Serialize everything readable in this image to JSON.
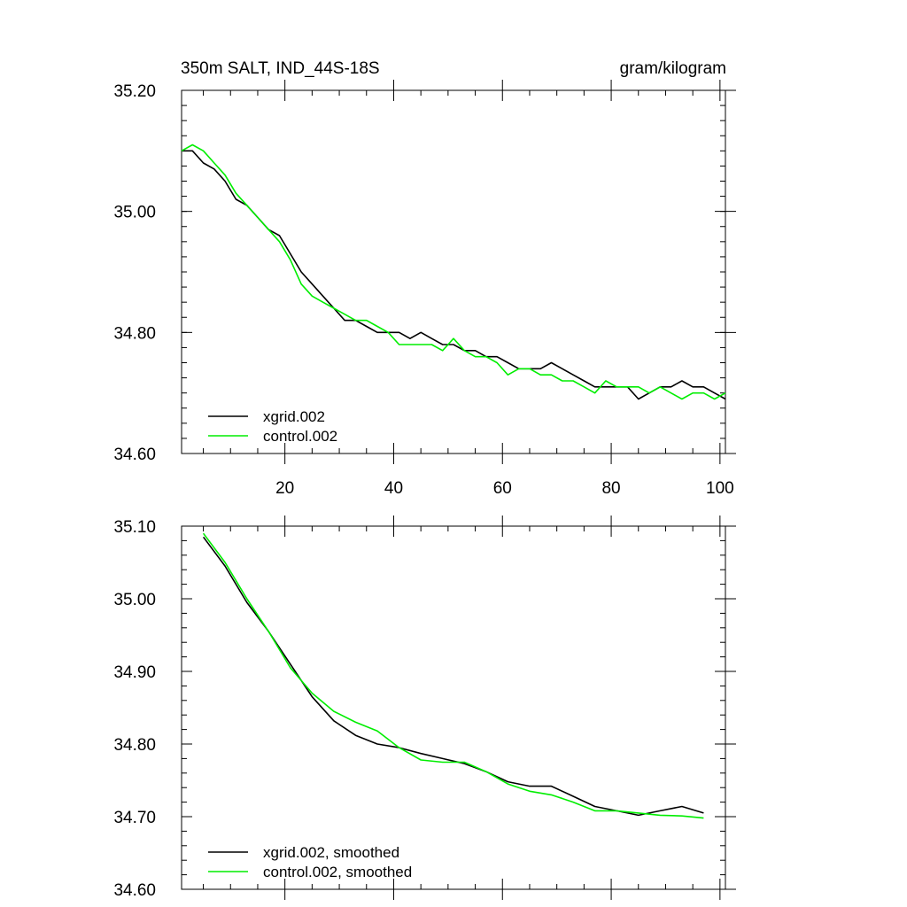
{
  "chart_data": [
    {
      "type": "line",
      "title": "350m SALT, IND_44S-18S",
      "units": "gram/kilogram",
      "xlim": [
        1,
        101
      ],
      "ylim": [
        34.6,
        35.2
      ],
      "xticks": [
        20,
        40,
        60,
        80,
        100
      ],
      "xtick_labels": [
        "20",
        "40",
        "60",
        "80",
        "100"
      ],
      "yticks": [
        34.6,
        34.8,
        35.0,
        35.2
      ],
      "ytick_labels": [
        "34.60",
        "34.80",
        "35.00",
        "35.20"
      ],
      "legend_position": "bottom-left",
      "series": [
        {
          "name": "xgrid.002",
          "color": "#000000",
          "x": [
            1,
            3,
            5,
            7,
            9,
            11,
            13,
            15,
            17,
            19,
            21,
            23,
            25,
            27,
            29,
            31,
            33,
            35,
            37,
            39,
            41,
            43,
            45,
            47,
            49,
            51,
            53,
            55,
            57,
            59,
            61,
            63,
            65,
            67,
            69,
            71,
            73,
            75,
            77,
            79,
            81,
            83,
            85,
            87,
            89,
            91,
            93,
            95,
            97,
            99,
            101
          ],
          "y": [
            35.1,
            35.1,
            35.08,
            35.07,
            35.05,
            35.02,
            35.01,
            34.99,
            34.97,
            34.96,
            34.93,
            34.9,
            34.88,
            34.86,
            34.84,
            34.82,
            34.82,
            34.81,
            34.8,
            34.8,
            34.8,
            34.79,
            34.8,
            34.79,
            34.78,
            34.78,
            34.77,
            34.77,
            34.76,
            34.76,
            34.75,
            34.74,
            34.74,
            34.74,
            34.75,
            34.74,
            34.73,
            34.72,
            34.71,
            34.71,
            34.71,
            34.71,
            34.69,
            34.7,
            34.71,
            34.71,
            34.72,
            34.71,
            34.71,
            34.7,
            34.69
          ]
        },
        {
          "name": "control.002",
          "color": "#00ee00",
          "x": [
            1,
            3,
            5,
            7,
            9,
            11,
            13,
            15,
            17,
            19,
            21,
            23,
            25,
            27,
            29,
            31,
            33,
            35,
            37,
            39,
            41,
            43,
            45,
            47,
            49,
            51,
            53,
            55,
            57,
            59,
            61,
            63,
            65,
            67,
            69,
            71,
            73,
            75,
            77,
            79,
            81,
            83,
            85,
            87,
            89,
            91,
            93,
            95,
            97,
            99,
            101
          ],
          "y": [
            35.1,
            35.11,
            35.1,
            35.08,
            35.06,
            35.03,
            35.01,
            34.99,
            34.97,
            34.95,
            34.92,
            34.88,
            34.86,
            34.85,
            34.84,
            34.83,
            34.82,
            34.82,
            34.81,
            34.8,
            34.78,
            34.78,
            34.78,
            34.78,
            34.77,
            34.79,
            34.77,
            34.76,
            34.76,
            34.75,
            34.73,
            34.74,
            34.74,
            34.73,
            34.73,
            34.72,
            34.72,
            34.71,
            34.7,
            34.72,
            34.71,
            34.71,
            34.71,
            34.7,
            34.71,
            34.7,
            34.69,
            34.7,
            34.7,
            34.69,
            34.7
          ]
        }
      ]
    },
    {
      "type": "line",
      "title": "",
      "xlim": [
        1,
        101
      ],
      "ylim": [
        34.6,
        35.1
      ],
      "xticks": [
        20,
        40,
        60,
        80,
        100
      ],
      "xtick_labels": [],
      "yticks": [
        34.6,
        34.7,
        34.8,
        34.9,
        35.0,
        35.1
      ],
      "ytick_labels": [
        "34.60",
        "34.70",
        "34.80",
        "34.90",
        "35.00",
        "35.10"
      ],
      "legend_position": "bottom-left",
      "series": [
        {
          "name": "xgrid.002, smoothed",
          "color": "#000000",
          "x": [
            5,
            9,
            13,
            17,
            21,
            25,
            29,
            33,
            37,
            41,
            45,
            49,
            53,
            57,
            61,
            65,
            69,
            73,
            77,
            81,
            85,
            89,
            93,
            97
          ],
          "y": [
            35.085,
            35.045,
            34.995,
            34.955,
            34.91,
            34.865,
            34.832,
            34.812,
            34.8,
            34.795,
            34.787,
            34.78,
            34.773,
            34.762,
            34.748,
            34.742,
            34.742,
            34.728,
            34.714,
            34.708,
            34.702,
            34.708,
            34.714,
            34.705
          ]
        },
        {
          "name": "control.002, smoothed",
          "color": "#00ee00",
          "x": [
            5,
            9,
            13,
            17,
            21,
            25,
            29,
            33,
            37,
            41,
            45,
            49,
            53,
            57,
            61,
            65,
            69,
            73,
            77,
            81,
            85,
            89,
            93,
            97
          ],
          "y": [
            35.09,
            35.05,
            35.0,
            34.955,
            34.905,
            34.87,
            34.845,
            34.83,
            34.818,
            34.795,
            34.778,
            34.775,
            34.775,
            34.762,
            34.745,
            34.735,
            34.73,
            34.72,
            34.708,
            34.708,
            34.705,
            34.702,
            34.701,
            34.698
          ]
        }
      ]
    }
  ]
}
